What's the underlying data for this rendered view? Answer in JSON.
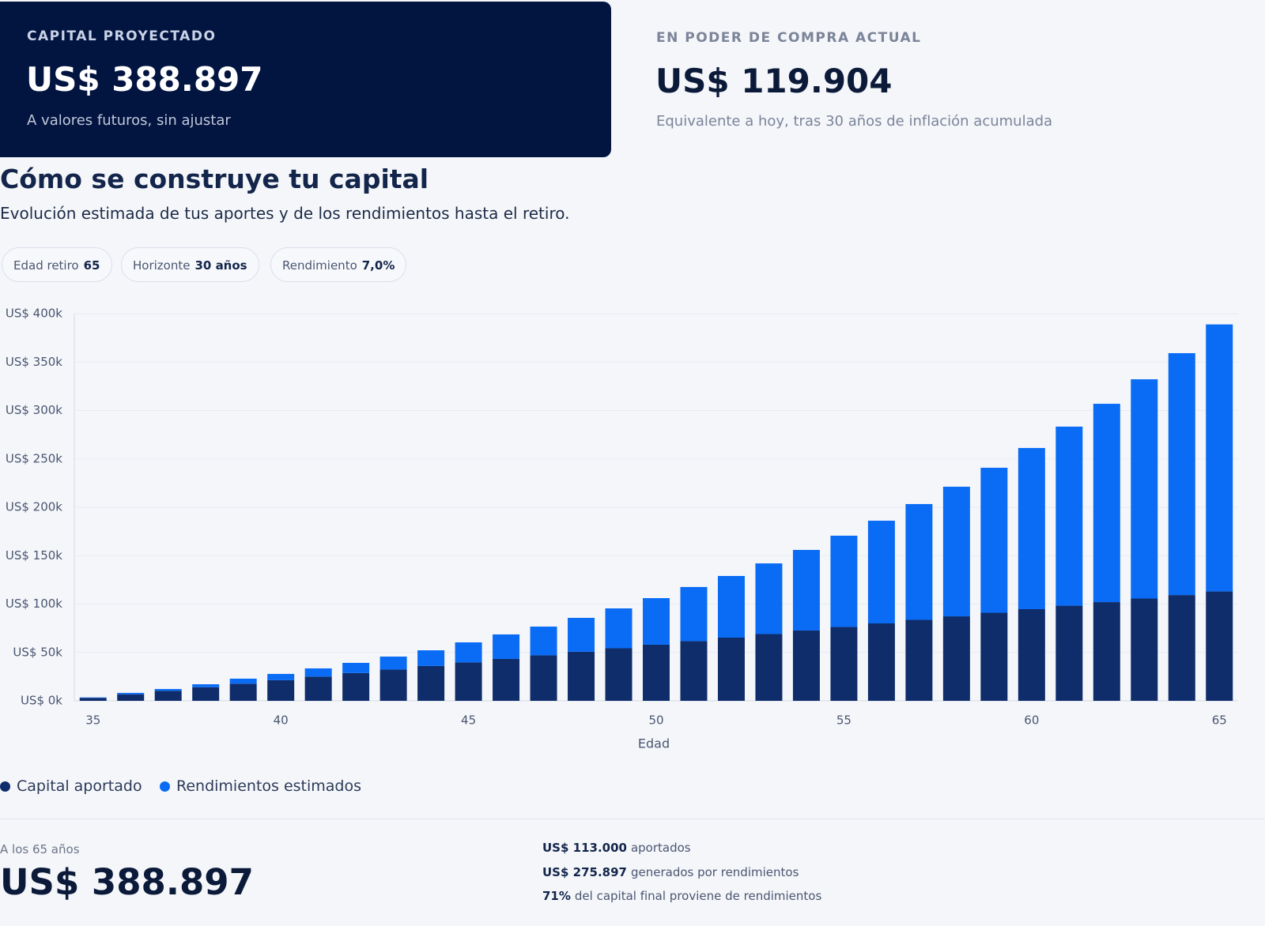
{
  "cards": {
    "projected": {
      "label": "CAPITAL PROYECTADO",
      "amount": "US$ 388.897",
      "note": "A valores futuros, sin ajustar"
    },
    "current": {
      "label": "EN PODER DE COMPRA ACTUAL",
      "amount": "US$ 119.904",
      "note": "Equivalente a hoy, tras 30 años de inflación acumulada"
    }
  },
  "section": {
    "heading": "Cómo se construye tu capital",
    "subheading": "Evolución estimada de tus aportes y de los rendimientos hasta el retiro."
  },
  "pills": [
    {
      "label": "Edad retiro",
      "value": "65"
    },
    {
      "label": "Horizonte",
      "value": "30 años"
    },
    {
      "label": "Rendimiento",
      "value": "7,0%"
    }
  ],
  "chart_data": {
    "type": "stacked-bar",
    "x_label": "Edad",
    "x": [
      35,
      36,
      37,
      38,
      39,
      40,
      41,
      42,
      43,
      44,
      45,
      46,
      47,
      48,
      49,
      50,
      51,
      52,
      53,
      54,
      55,
      56,
      57,
      58,
      59,
      60,
      61,
      62,
      63,
      64,
      65
    ],
    "xlim": [
      34.5,
      65.5
    ],
    "xticks": [
      35,
      40,
      45,
      50,
      55,
      60,
      65
    ],
    "ylim": [
      0,
      400000
    ],
    "yticks": [
      {
        "value": 0,
        "label": "US$ 0k"
      },
      {
        "value": 50000,
        "label": "US$ 50k"
      },
      {
        "value": 100000,
        "label": "US$ 100k"
      },
      {
        "value": 150000,
        "label": "US$ 150k"
      },
      {
        "value": 200000,
        "label": "US$ 200k"
      },
      {
        "value": 250000,
        "label": "US$ 250k"
      },
      {
        "value": 300000,
        "label": "US$ 300k"
      },
      {
        "value": 350000,
        "label": "US$ 350k"
      },
      {
        "value": 400000,
        "label": "US$ 400k"
      }
    ],
    "grid": true,
    "series": [
      {
        "name": "Capital aportado",
        "color": "#0f2d6b",
        "values": [
          3000,
          6700,
          10300,
          14000,
          17700,
          21300,
          25000,
          28700,
          32300,
          36000,
          39700,
          43300,
          47000,
          50700,
          54300,
          58000,
          61700,
          65300,
          69000,
          72700,
          76300,
          80000,
          83700,
          87300,
          91000,
          94700,
          98300,
          102000,
          105700,
          109300,
          113000
        ]
      },
      {
        "name": "Rendimientos estimados",
        "color": "#0a6cf5",
        "values": [
          500,
          1500,
          1900,
          3100,
          5200,
          6500,
          8500,
          10500,
          13400,
          16200,
          20700,
          25300,
          29700,
          35000,
          41200,
          48100,
          55900,
          63700,
          73000,
          83200,
          94300,
          106100,
          119600,
          133900,
          149800,
          166500,
          185000,
          204900,
          226500,
          249900,
          275897
        ]
      }
    ]
  },
  "summary": {
    "age_label": "A los 65 años",
    "total": "US$ 388.897",
    "lines": [
      {
        "strong": "US$ 113.000",
        "text": "aportados"
      },
      {
        "strong": "US$ 275.897",
        "text": "generados por rendimientos"
      },
      {
        "strong": "71%",
        "text": "del capital final proviene de rendimientos"
      }
    ]
  }
}
